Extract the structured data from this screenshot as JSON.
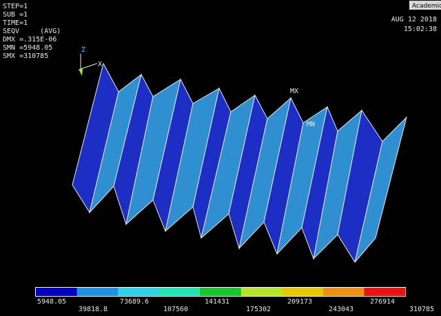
{
  "header": {
    "lines": [
      "STEP=1",
      "SUB =1",
      "TIME=1",
      "SEQV     (AVG)",
      "DMX =.315E-06",
      "SMN =5948.05",
      "SMX =310785"
    ]
  },
  "badge": "Academic",
  "date": "AUG 12 2018",
  "time": "15:02:38",
  "labels": {
    "z_axis": "Z",
    "x_axis": "X",
    "max": "MX",
    "min": "MN"
  },
  "legend": {
    "colors": [
      "#0000c8",
      "#1e90e6",
      "#2ed2e6",
      "#20e6b4",
      "#16c82a",
      "#b4e628",
      "#e6c800",
      "#f09010",
      "#f01010"
    ],
    "values": [
      "5948.05",
      "39818.8",
      "73689.6",
      "107560",
      "141431",
      "175302",
      "209173",
      "243043",
      "276914",
      "310785"
    ]
  }
}
